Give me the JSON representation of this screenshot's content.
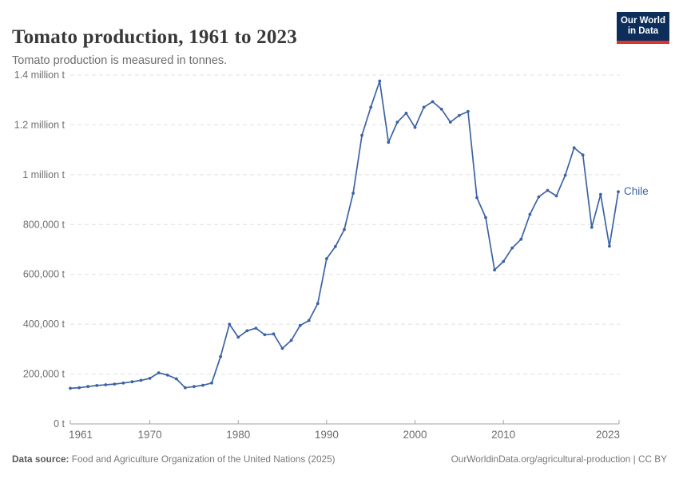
{
  "header": {
    "title": "Tomato production, 1961 to 2023",
    "subtitle": "Tomato production is measured in tonnes.",
    "logo": {
      "line1": "Our World",
      "line2": "in Data",
      "bg_color": "#0d2e5b",
      "accent_color": "#dc352d"
    }
  },
  "chart_data": {
    "type": "line",
    "title": "Tomato production, 1961 to 2023",
    "unit": "tonnes",
    "xlabel": "",
    "ylabel": "",
    "ylim": [
      0,
      1400000
    ],
    "xlim": [
      1961,
      2023
    ],
    "grid": true,
    "legend_position": "end-of-line",
    "line_color": "#3d63a3",
    "grid_color": "#e0e0e0",
    "axis_color": "#a3a3a3",
    "yticks": [
      {
        "value": 0,
        "label": "0 t"
      },
      {
        "value": 200000,
        "label": "200,000 t"
      },
      {
        "value": 400000,
        "label": "400,000 t"
      },
      {
        "value": 600000,
        "label": "600,000 t"
      },
      {
        "value": 800000,
        "label": "800,000 t"
      },
      {
        "value": 1000000,
        "label": "1 million t"
      },
      {
        "value": 1200000,
        "label": "1.2 million t"
      },
      {
        "value": 1400000,
        "label": "1.4 million t"
      }
    ],
    "xticks": [
      {
        "year": 1961,
        "label": "1961"
      },
      {
        "year": 1970,
        "label": "1970"
      },
      {
        "year": 1980,
        "label": "1980"
      },
      {
        "year": 1990,
        "label": "1990"
      },
      {
        "year": 2000,
        "label": "2000"
      },
      {
        "year": 2010,
        "label": "2010"
      },
      {
        "year": 2023,
        "label": "2023"
      }
    ],
    "series": [
      {
        "name": "Chile",
        "color": "#3d63a3",
        "years": [
          1961,
          1962,
          1963,
          1964,
          1965,
          1966,
          1967,
          1968,
          1969,
          1970,
          1971,
          1972,
          1973,
          1974,
          1975,
          1976,
          1977,
          1978,
          1979,
          1980,
          1981,
          1982,
          1983,
          1984,
          1985,
          1986,
          1987,
          1988,
          1989,
          1990,
          1991,
          1992,
          1993,
          1994,
          1995,
          1996,
          1997,
          1998,
          1999,
          2000,
          2001,
          2002,
          2003,
          2004,
          2005,
          2006,
          2007,
          2008,
          2009,
          2010,
          2011,
          2012,
          2013,
          2014,
          2015,
          2016,
          2017,
          2018,
          2019,
          2020,
          2021,
          2022,
          2023
        ],
        "values": [
          143000,
          145000,
          150000,
          154000,
          157000,
          160000,
          164000,
          169000,
          175000,
          183000,
          205000,
          196000,
          181000,
          145000,
          150000,
          155000,
          164000,
          270000,
          400000,
          348000,
          374000,
          384000,
          358000,
          361000,
          303000,
          335000,
          395000,
          415000,
          483000,
          663000,
          712000,
          780000,
          926000,
          1158000,
          1271000,
          1376000,
          1130000,
          1211000,
          1247000,
          1190000,
          1271000,
          1293000,
          1263000,
          1211000,
          1238000,
          1254000,
          908000,
          828000,
          618000,
          652000,
          706000,
          741000,
          841000,
          911000,
          937000,
          915000,
          998000,
          1108000,
          1079000,
          789000,
          921000,
          713000,
          932000
        ]
      }
    ]
  },
  "footer": {
    "datasource_label": "Data source:",
    "datasource": " Food and Agriculture Organization of the United Nations (2025)",
    "link": "OurWorldinData.org/agricultural-production",
    "separator": " | ",
    "license": "CC BY"
  }
}
